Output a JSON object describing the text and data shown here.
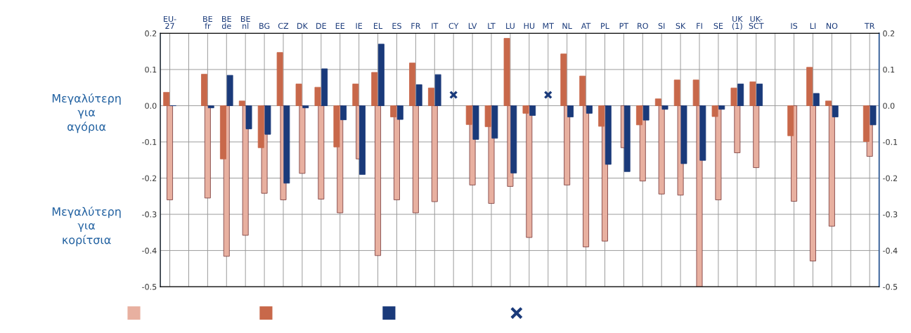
{
  "chart_data": {
    "type": "bar",
    "categories": [
      "EU-\n27",
      null,
      "BE\nfr",
      "BE\nde",
      "BE\nnl",
      "BG",
      "CZ",
      "DK",
      "DE",
      "EE",
      "IE",
      "EL",
      "ES",
      "FR",
      "IT",
      "CY",
      "LV",
      "LT",
      "LU",
      "HU",
      "MT",
      "NL",
      "AT",
      "PL",
      "PT",
      "RO",
      "SI",
      "SK",
      "FI",
      "SE",
      "UK\n(1)",
      "UK-\nSCT",
      null,
      "IS",
      "LI",
      "NO",
      null,
      "TR"
    ],
    "series": [
      {
        "color": "#e8b0a0",
        "values": [
          -0.26,
          null,
          -0.255,
          -0.416,
          -0.358,
          -0.242,
          -0.26,
          -0.187,
          -0.258,
          -0.296,
          -0.147,
          -0.414,
          -0.26,
          -0.296,
          -0.265,
          null,
          -0.219,
          -0.27,
          -0.223,
          -0.364,
          null,
          -0.219,
          -0.39,
          -0.374,
          -0.116,
          -0.208,
          -0.244,
          -0.247,
          -0.5,
          -0.26,
          -0.13,
          -0.171,
          null,
          -0.264,
          -0.429,
          -0.333,
          null,
          -0.14
        ]
      },
      {
        "color": "#c8684a",
        "values": [
          0.037,
          null,
          0.087,
          -0.147,
          0.013,
          -0.116,
          0.147,
          0.06,
          0.051,
          -0.114,
          0.06,
          0.092,
          -0.031,
          0.118,
          0.049,
          null,
          -0.052,
          -0.058,
          0.186,
          -0.021,
          null,
          0.143,
          0.082,
          -0.057,
          null,
          -0.053,
          0.019,
          0.071,
          0.071,
          -0.03,
          0.049,
          0.066,
          null,
          -0.083,
          0.106,
          0.013,
          null,
          -0.099
        ]
      },
      {
        "color": "#1a3a7a",
        "values": [
          0.0,
          null,
          -0.006,
          0.084,
          -0.064,
          -0.079,
          -0.214,
          -0.006,
          0.102,
          -0.039,
          -0.19,
          0.17,
          -0.038,
          0.058,
          0.086,
          null,
          -0.093,
          -0.09,
          -0.186,
          -0.027,
          null,
          -0.031,
          -0.021,
          -0.162,
          -0.182,
          -0.04,
          -0.01,
          -0.16,
          -0.151,
          -0.01,
          0.06,
          0.06,
          null,
          null,
          0.034,
          -0.031,
          null,
          -0.053
        ]
      },
      {
        "type": "scatter",
        "marker": "cross",
        "color": "#1a3a7a",
        "values": [
          null,
          null,
          null,
          null,
          null,
          null,
          null,
          null,
          null,
          null,
          null,
          null,
          null,
          null,
          null,
          0.03,
          null,
          null,
          null,
          null,
          0.03,
          null,
          null,
          null,
          null,
          null,
          null,
          null,
          null,
          null,
          null,
          null,
          null,
          null,
          null,
          null,
          null,
          null
        ]
      }
    ],
    "ylim": [
      -0.5,
      0.2
    ],
    "yticks": [
      0.2,
      0.1,
      {
        "value": 0,
        "label": "0.0"
      },
      {
        "value": -0.1,
        "label": "-0.1"
      },
      {
        "value": -0.2,
        "label": "-0.2"
      },
      {
        "value": -0.3,
        "label": "-0.3"
      },
      {
        "value": -0.4,
        "label": "-0.4"
      },
      {
        "value": -0.5,
        "label": "-0.5"
      }
    ],
    "y2lim": [
      -0.5,
      0.2
    ],
    "y2ticks": [
      0.2,
      0.1,
      {
        "value": 0,
        "label": "0.0"
      },
      {
        "value": -0.1,
        "label": "-0.1"
      },
      {
        "value": -0.2,
        "label": "-0.2"
      },
      {
        "value": -0.3,
        "label": "-0.3"
      },
      {
        "value": -0.4,
        "label": "-0.4"
      },
      {
        "value": -0.5,
        "label": "-0.5"
      }
    ],
    "grid": true,
    "annotations": [
      "Μεγαλύτερη\nγια\nαγόρια",
      "Μεγαλύτερη\nγια\nκορίτσια"
    ]
  }
}
